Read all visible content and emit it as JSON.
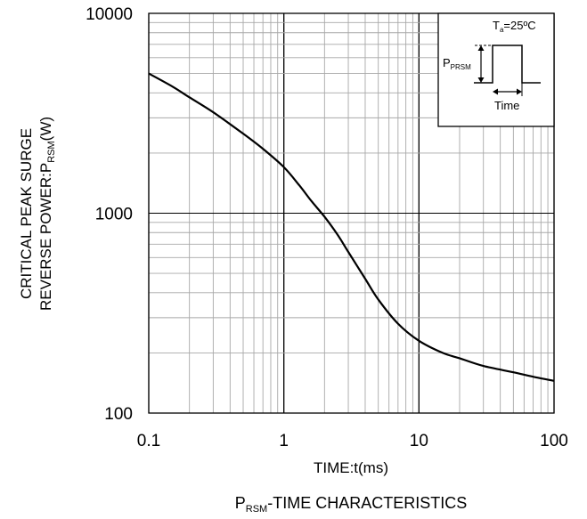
{
  "chart_data": {
    "type": "line",
    "title": "",
    "caption": {
      "main": "P",
      "sub": "RSM",
      "rest": "-TIME  CHARACTERISTICS"
    },
    "xlabel": "TIME:t(ms)",
    "ylabel": {
      "line1": "CRITICAL PEAK SURGE",
      "line2_pre": "REVERSE POWER:P",
      "line2_sub": "RSM",
      "line2_post": "(W)"
    },
    "x_scale": "log",
    "y_scale": "log",
    "xlim": [
      0.1,
      100
    ],
    "ylim": [
      100,
      10000
    ],
    "grid": true,
    "x_tick_labels": [
      "0.1",
      "1",
      "10",
      "100"
    ],
    "y_tick_labels": [
      "100",
      "1000",
      "10000"
    ],
    "series": [
      {
        "x": [
          0.1,
          0.15,
          0.2,
          0.3,
          0.5,
          0.7,
          1.0,
          1.3,
          1.6,
          2.0,
          2.5,
          3.0,
          4.0,
          5.0,
          7.0,
          10,
          15,
          20,
          30,
          50,
          70,
          100
        ],
        "y": [
          5000,
          4300,
          3800,
          3200,
          2500,
          2100,
          1700,
          1380,
          1150,
          960,
          780,
          640,
          470,
          370,
          280,
          230,
          200,
          188,
          172,
          160,
          152,
          145
        ]
      }
    ],
    "inset": {
      "temp_pre": "T",
      "temp_sub": "a",
      "temp_post": "=25ºC",
      "pulse_label_pre": "P",
      "pulse_label_sub": "PRSM",
      "time_label": "Time"
    }
  }
}
